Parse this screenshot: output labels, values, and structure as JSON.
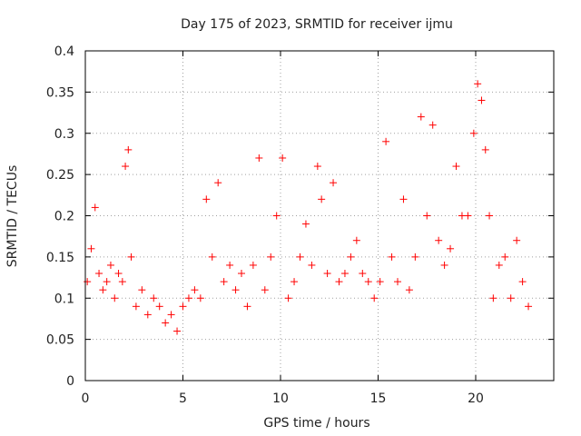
{
  "chart_data": {
    "type": "scatter",
    "title": "Day 175 of 2023, SRMTID for receiver ijmu",
    "xlabel": "GPS time / hours",
    "ylabel": "SRMTID / TECUs",
    "xlim": [
      0,
      24
    ],
    "ylim": [
      0,
      0.4
    ],
    "x_ticks": [
      0,
      5,
      10,
      15,
      20
    ],
    "x_tick_labels": [
      "0",
      "5",
      "10",
      "15",
      "20"
    ],
    "y_ticks": [
      0,
      0.05,
      0.1,
      0.15,
      0.2,
      0.25,
      0.3,
      0.35,
      0.4
    ],
    "y_tick_labels": [
      "0",
      "0.05",
      "0.1",
      "0.15",
      "0.2",
      "0.25",
      "0.3",
      "0.35",
      "0.4"
    ],
    "grid": true,
    "marker": "plus",
    "color": "#ff0000",
    "series": [
      {
        "name": "SRMTID",
        "x": [
          0.1,
          0.3,
          0.5,
          0.7,
          0.9,
          1.1,
          1.3,
          1.5,
          1.7,
          1.9,
          2.05,
          2.2,
          2.35,
          2.6,
          2.9,
          3.2,
          3.5,
          3.8,
          4.1,
          4.4,
          4.7,
          5.0,
          5.3,
          5.6,
          5.9,
          6.2,
          6.5,
          6.8,
          7.1,
          7.4,
          7.7,
          8.0,
          8.3,
          8.6,
          8.9,
          9.2,
          9.5,
          9.8,
          10.1,
          10.4,
          10.7,
          11.0,
          11.3,
          11.6,
          11.9,
          12.1,
          12.4,
          12.7,
          13.0,
          13.3,
          13.6,
          13.9,
          14.2,
          14.5,
          14.8,
          15.1,
          15.4,
          15.7,
          16.0,
          16.3,
          16.6,
          16.9,
          17.2,
          17.5,
          17.8,
          18.1,
          18.4,
          18.7,
          19.0,
          19.3,
          19.6,
          19.9,
          20.1,
          20.3,
          20.5,
          20.7,
          20.9,
          21.2,
          21.5,
          21.8,
          22.1,
          22.4,
          22.7
        ],
        "y": [
          0.12,
          0.16,
          0.21,
          0.13,
          0.11,
          0.12,
          0.14,
          0.1,
          0.13,
          0.12,
          0.26,
          0.28,
          0.15,
          0.09,
          0.11,
          0.08,
          0.1,
          0.09,
          0.07,
          0.08,
          0.06,
          0.09,
          0.1,
          0.11,
          0.1,
          0.22,
          0.15,
          0.24,
          0.12,
          0.14,
          0.11,
          0.13,
          0.09,
          0.14,
          0.27,
          0.11,
          0.15,
          0.2,
          0.27,
          0.1,
          0.12,
          0.15,
          0.19,
          0.14,
          0.26,
          0.22,
          0.13,
          0.24,
          0.12,
          0.13,
          0.15,
          0.17,
          0.13,
          0.12,
          0.1,
          0.12,
          0.29,
          0.15,
          0.12,
          0.22,
          0.11,
          0.15,
          0.32,
          0.2,
          0.31,
          0.17,
          0.14,
          0.16,
          0.26,
          0.2,
          0.2,
          0.3,
          0.36,
          0.34,
          0.28,
          0.2,
          0.1,
          0.14,
          0.15,
          0.1,
          0.17,
          0.12,
          0.09
        ]
      }
    ]
  }
}
